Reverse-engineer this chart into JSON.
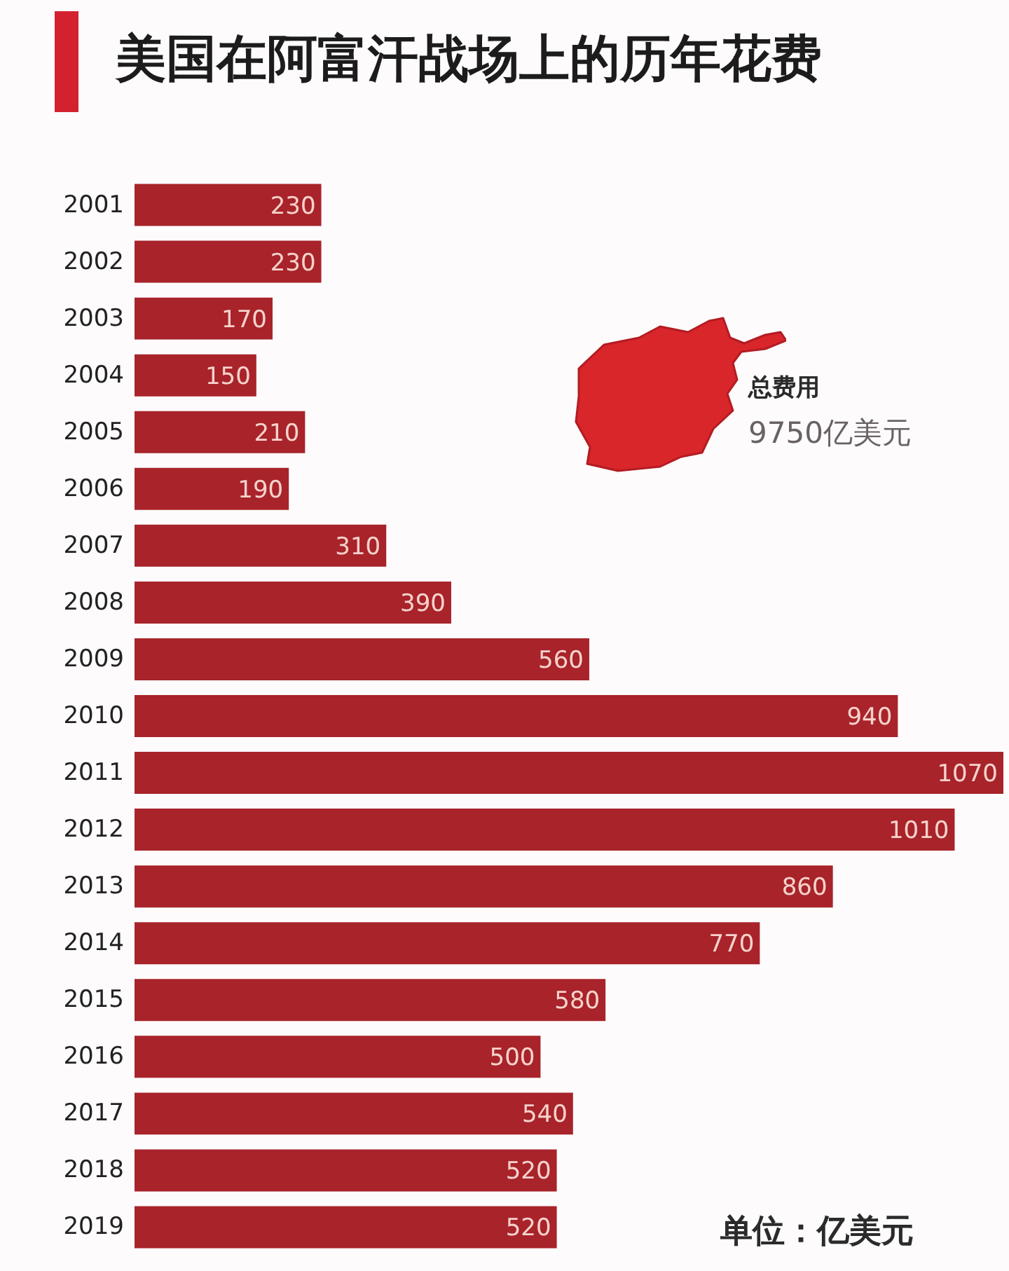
{
  "chart_data": {
    "type": "bar",
    "orientation": "horizontal",
    "title": "美国在阿富汗战场上的历年花费",
    "categories": [
      "2001",
      "2002",
      "2003",
      "2004",
      "2005",
      "2006",
      "2007",
      "2008",
      "2009",
      "2010",
      "2011",
      "2012",
      "2013",
      "2014",
      "2015",
      "2016",
      "2017",
      "2018",
      "2019"
    ],
    "values": [
      230,
      230,
      170,
      150,
      210,
      190,
      310,
      390,
      560,
      940,
      1070,
      1010,
      860,
      770,
      580,
      500,
      540,
      520,
      520
    ],
    "color": "#a8232a",
    "data_labels": true,
    "tick_labels": "y",
    "annotations": [
      "总费用",
      "9750亿美元",
      "单位：亿美元"
    ]
  }
}
